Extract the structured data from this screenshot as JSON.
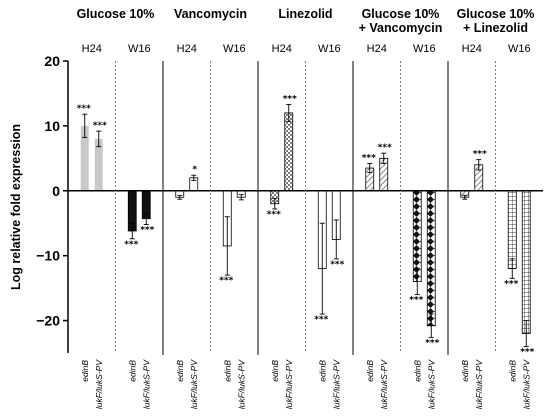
{
  "chart_data": {
    "type": "bar",
    "ylabel": "Log relative fold expression",
    "ylim": [
      -25,
      20
    ],
    "y_ticks": [
      20,
      10,
      0,
      -10,
      -20
    ],
    "y_tick_labels": [
      "20",
      "10",
      "0",
      "−10",
      "−20"
    ],
    "gene_labels": [
      "edinB",
      "lukF/lukS-PV"
    ],
    "series_colors": [
      "#c8c8c8",
      "#c8c8c8"
    ],
    "groups": [
      {
        "title": [
          "Glucose 10%"
        ],
        "conditions": [
          {
            "label": "H24",
            "pattern": "solid-gray",
            "bars": [
              {
                "value": 10.0,
                "err": 1.8,
                "sig": "***"
              },
              {
                "value": 8.0,
                "err": 1.2,
                "sig": "***"
              }
            ]
          },
          {
            "label": "W16",
            "pattern": "solid-black",
            "bars": [
              {
                "value": -6.2,
                "err": 1.2,
                "sig": "***"
              },
              {
                "value": -4.3,
                "err": 0.9,
                "sig": "***"
              }
            ]
          }
        ]
      },
      {
        "title": [
          "Vancomycin"
        ],
        "conditions": [
          {
            "label": "H24",
            "pattern": "white",
            "bars": [
              {
                "value": -1.0,
                "err": 0.3,
                "sig": ""
              },
              {
                "value": 2.0,
                "err": 0.4,
                "sig": "*"
              }
            ]
          },
          {
            "label": "W16",
            "pattern": "white",
            "bars": [
              {
                "value": -8.5,
                "err": 4.5,
                "sig": "***"
              },
              {
                "value": -1.0,
                "err": 0.4,
                "sig": ""
              }
            ]
          }
        ]
      },
      {
        "title": [
          "Linezolid"
        ],
        "conditions": [
          {
            "label": "H24",
            "pattern": "checker",
            "bars": [
              {
                "value": -2.0,
                "err": 0.8,
                "sig": "***"
              },
              {
                "value": 12.0,
                "err": 1.3,
                "sig": "***"
              }
            ]
          },
          {
            "label": "W16",
            "pattern": "white",
            "bars": [
              {
                "value": -12.0,
                "err": 7.0,
                "sig": "***"
              },
              {
                "value": -7.5,
                "err": 3.0,
                "sig": "***"
              }
            ]
          }
        ]
      },
      {
        "title": [
          "Glucose 10%",
          "+ Vancomycin"
        ],
        "conditions": [
          {
            "label": "H24",
            "pattern": "diagonal",
            "bars": [
              {
                "value": 3.5,
                "err": 0.7,
                "sig": "***"
              },
              {
                "value": 5.0,
                "err": 0.8,
                "sig": "***"
              }
            ]
          },
          {
            "label": "W16",
            "pattern": "diamond",
            "bars": [
              {
                "value": -14.0,
                "err": 2.0,
                "sig": "***"
              },
              {
                "value": -20.8,
                "err": 1.8,
                "sig": "***"
              }
            ]
          }
        ]
      },
      {
        "title": [
          "Glucose 10%",
          "+ Linezolid"
        ],
        "conditions": [
          {
            "label": "H24",
            "pattern": "diagonal",
            "bars": [
              {
                "value": -1.0,
                "err": 0.3,
                "sig": ""
              },
              {
                "value": 4.0,
                "err": 0.8,
                "sig": "***"
              }
            ]
          },
          {
            "label": "W16",
            "pattern": "grid",
            "bars": [
              {
                "value": -12.0,
                "err": 1.5,
                "sig": "***"
              },
              {
                "value": -22.0,
                "err": 2.0,
                "sig": "***"
              }
            ]
          }
        ]
      }
    ]
  }
}
